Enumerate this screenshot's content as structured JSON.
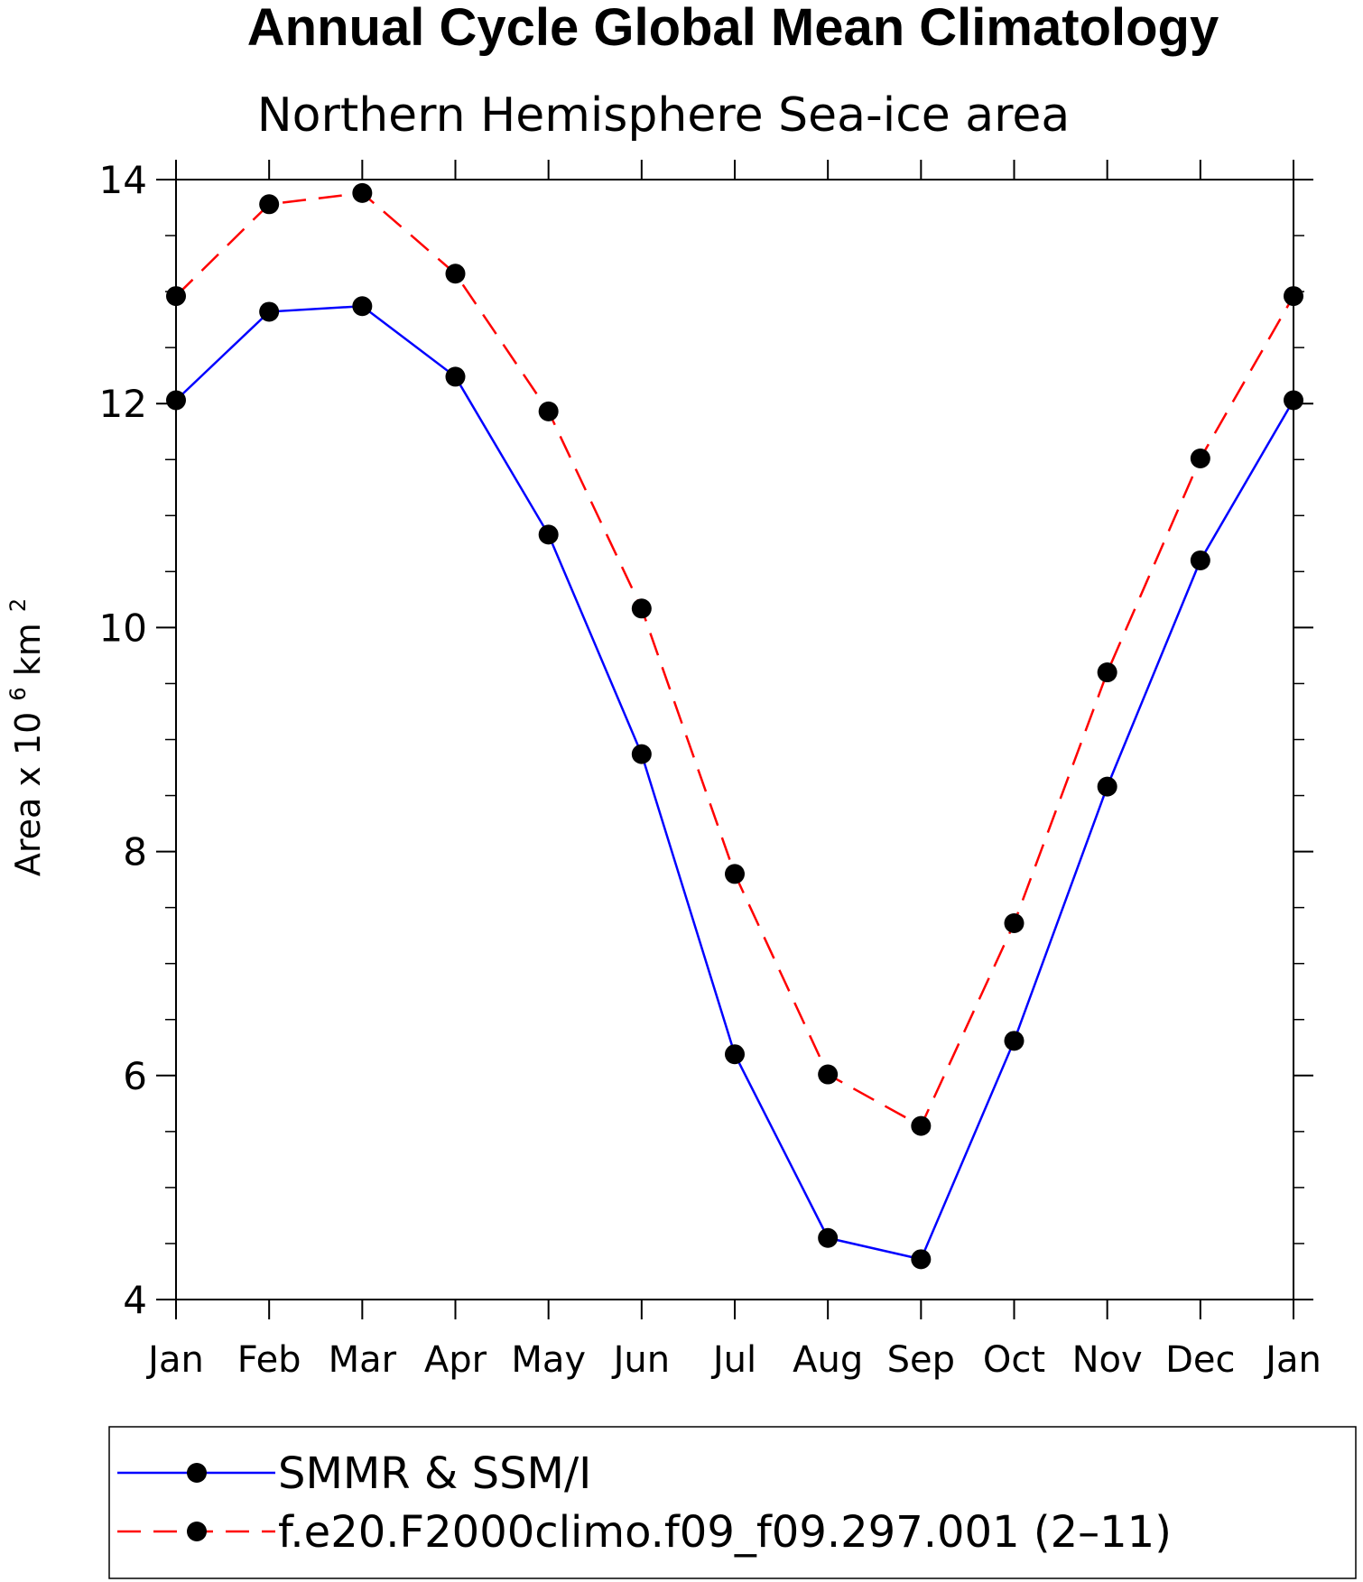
{
  "chart_data": {
    "type": "line",
    "title": "Annual Cycle Global Mean Climatology",
    "subtitle": "Northern Hemisphere Sea-ice area",
    "xlabel": "",
    "ylabel": {
      "base": "Area x 10",
      "exp1": "6",
      "unit": " km",
      "exp2": "2"
    },
    "categories": [
      "Jan",
      "Feb",
      "Mar",
      "Apr",
      "May",
      "Jun",
      "Jul",
      "Aug",
      "Sep",
      "Oct",
      "Nov",
      "Dec",
      "Jan"
    ],
    "ylim": [
      4,
      14
    ],
    "y_major_ticks": [
      4,
      6,
      8,
      10,
      12,
      14
    ],
    "y_minor_step": 0.5,
    "y_tick_labels": [
      "4",
      "6",
      "8",
      "10",
      "12",
      "14"
    ],
    "grid": false,
    "series": [
      {
        "name": "SMMR & SSM/I",
        "color": "#0000ff",
        "dash": "solid",
        "marker": "filled-circle",
        "values": [
          12.03,
          12.82,
          12.87,
          12.24,
          10.83,
          8.87,
          6.19,
          4.55,
          4.36,
          6.31,
          8.58,
          10.6,
          12.03
        ]
      },
      {
        "name": "f.e20.F2000climo.f09_f09.297.001 (2–11)",
        "color": "#ff0000",
        "dash": "dashed",
        "marker": "filled-circle",
        "values": [
          12.96,
          13.78,
          13.88,
          13.16,
          11.93,
          10.17,
          7.8,
          6.01,
          5.55,
          7.36,
          9.6,
          11.51,
          12.96
        ]
      }
    ],
    "legend_position": "bottom"
  }
}
